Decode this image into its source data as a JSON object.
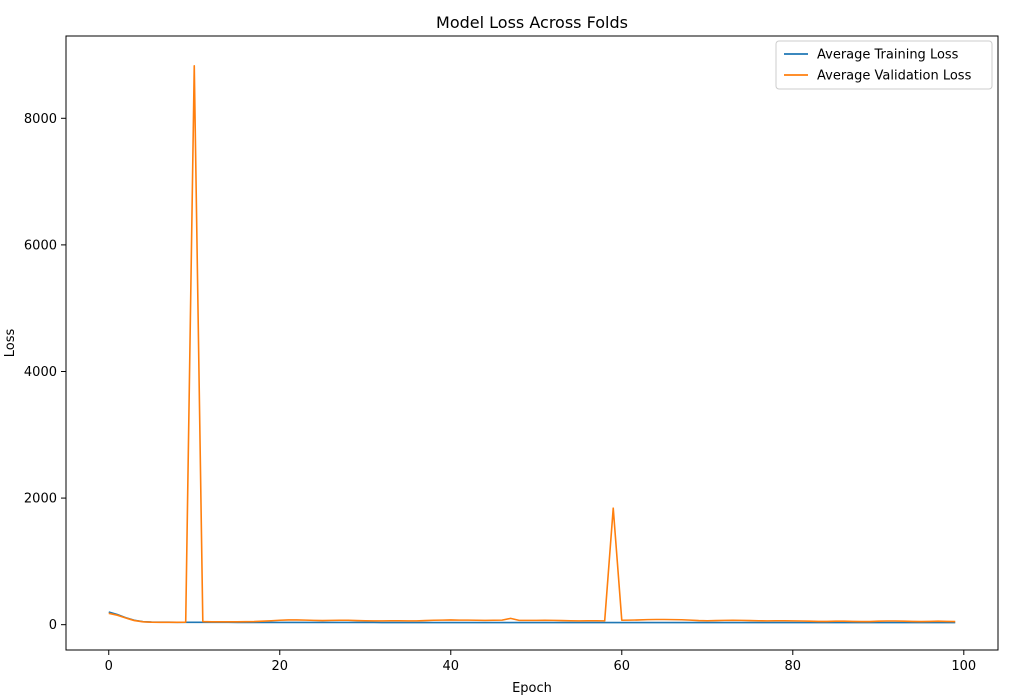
{
  "chart_data": {
    "type": "line",
    "title": "Model Loss Across Folds",
    "xlabel": "Epoch",
    "ylabel": "Loss",
    "xlim": [
      -5,
      104
    ],
    "ylim": [
      -400,
      9300
    ],
    "xticks": [
      0,
      20,
      40,
      60,
      80,
      100
    ],
    "yticks": [
      0,
      2000,
      4000,
      6000,
      8000
    ],
    "grid": false,
    "legend_position": "top-right",
    "series": [
      {
        "name": "Average Training Loss",
        "color": "#1f77b4",
        "values": [
          200,
          160,
          110,
          70,
          48,
          42,
          40,
          39,
          38,
          38,
          38,
          37,
          37,
          37,
          37,
          36,
          36,
          36,
          36,
          36,
          36,
          35,
          35,
          35,
          35,
          35,
          35,
          35,
          35,
          35,
          35,
          35,
          34,
          34,
          34,
          34,
          34,
          34,
          34,
          34,
          34,
          34,
          34,
          34,
          34,
          34,
          34,
          34,
          34,
          34,
          34,
          34,
          34,
          34,
          34,
          34,
          34,
          34,
          34,
          34,
          34,
          34,
          34,
          34,
          34,
          34,
          34,
          34,
          34,
          34,
          34,
          34,
          34,
          34,
          34,
          34,
          34,
          34,
          34,
          34,
          34,
          34,
          34,
          34,
          34,
          34,
          34,
          34,
          34,
          34,
          34,
          34,
          34,
          34,
          34,
          34,
          34,
          34,
          34,
          34
        ]
      },
      {
        "name": "Average Validation Loss",
        "color": "#ff7f0e",
        "values": [
          180,
          150,
          105,
          65,
          45,
          40,
          38,
          37,
          37,
          40,
          8830,
          50,
          45,
          45,
          45,
          45,
          48,
          50,
          55,
          62,
          70,
          75,
          75,
          72,
          68,
          65,
          68,
          70,
          70,
          65,
          62,
          60,
          60,
          62,
          62,
          60,
          60,
          65,
          70,
          72,
          75,
          72,
          72,
          70,
          68,
          70,
          72,
          100,
          68,
          68,
          68,
          70,
          68,
          65,
          62,
          60,
          62,
          62,
          60,
          1840,
          70,
          72,
          75,
          80,
          82,
          82,
          80,
          78,
          72,
          65,
          62,
          65,
          68,
          70,
          68,
          65,
          62,
          60,
          62,
          62,
          60,
          58,
          55,
          52,
          52,
          55,
          55,
          52,
          50,
          50,
          55,
          58,
          58,
          55,
          52,
          50,
          52,
          55,
          52,
          50
        ]
      }
    ]
  }
}
